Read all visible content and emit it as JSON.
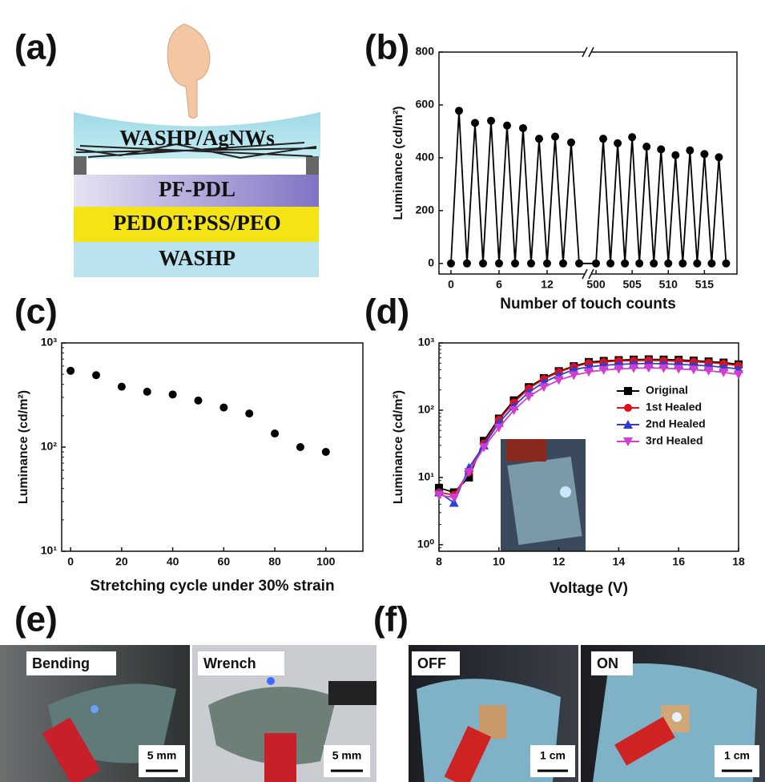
{
  "panel_labels": [
    "(a)",
    "(b)",
    "(c)",
    "(d)",
    "(e)",
    "(f)"
  ],
  "diagram": {
    "layers": [
      "WASHP/AgNWs",
      "PF-PDL",
      "PEDOT:PSS/PEO",
      "WASHP"
    ]
  },
  "photos": [
    {
      "caption": "Bending",
      "scale_bar": "5 mm"
    },
    {
      "caption": "Wrench",
      "scale_bar": "5 mm"
    },
    {
      "caption": "OFF",
      "scale_bar": "1 cm"
    },
    {
      "caption": "ON",
      "scale_bar": "1 cm"
    }
  ],
  "chart_data": [
    {
      "type": "line",
      "x_label": "Number of touch counts",
      "y_label": "Luminance (cd/m²)",
      "x": [
        0,
        1,
        2,
        3,
        4,
        5,
        6,
        7,
        8,
        9,
        10,
        11,
        12,
        13,
        14,
        15,
        16,
        500,
        501,
        502,
        503,
        504,
        505,
        506,
        507,
        508,
        509,
        510,
        511,
        512,
        513,
        514,
        515,
        516,
        517,
        518
      ],
      "series": [
        {
          "color": "#000000",
          "marker": "circle",
          "values": [
            0,
            578,
            0,
            532,
            0,
            540,
            0,
            522,
            0,
            512,
            0,
            472,
            0,
            480,
            0,
            458,
            0,
            0,
            472,
            0,
            455,
            0,
            478,
            0,
            442,
            0,
            432,
            0,
            410,
            0,
            428,
            0,
            414,
            0,
            402,
            0
          ]
        }
      ],
      "xlim": [
        -1.5,
        519.5
      ],
      "xticks": [
        0,
        6,
        12,
        500,
        505,
        510,
        515
      ],
      "ylim": [
        -40,
        800
      ],
      "yticks": [
        0,
        200,
        400,
        600,
        800
      ]
    },
    {
      "type": "scatter",
      "x_label": "Stretching cycle under 30% strain",
      "y_label": "Luminance (cd/m²)",
      "x": [
        0,
        10,
        20,
        30,
        40,
        50,
        60,
        70,
        80,
        90,
        100
      ],
      "series": [
        {
          "color": "#000000",
          "marker": "circle",
          "values": [
            540,
            490,
            380,
            340,
            320,
            280,
            240,
            210,
            135,
            100,
            90
          ]
        }
      ],
      "xlim": [
        -3.5,
        114.5
      ],
      "xticks": [
        0,
        20,
        40,
        60,
        80,
        100
      ],
      "y_scale": "log",
      "ylim": [
        10,
        1000
      ],
      "yticks": [
        {
          "value": 10,
          "label": "10¹"
        },
        {
          "value": 100,
          "label": "10²"
        },
        {
          "value": 1000,
          "label": "10³"
        }
      ]
    },
    {
      "type": "line",
      "x_label": "Voltage (V)",
      "y_label": "Luminance (cd/m²)",
      "x": [
        8,
        8.5,
        9,
        9.5,
        10,
        10.5,
        11,
        11.5,
        12,
        12.5,
        13,
        13.5,
        14,
        14.5,
        15,
        15.5,
        16,
        16.5,
        17,
        17.5,
        18
      ],
      "series": [
        {
          "name": "Original",
          "color": "#000000",
          "marker": "square",
          "values": [
            7,
            6,
            10,
            35,
            75,
            140,
            220,
            300,
            380,
            450,
            520,
            540,
            555,
            565,
            570,
            565,
            560,
            545,
            530,
            510,
            480
          ]
        },
        {
          "name": "1st Healed",
          "color": "#e0101a",
          "marker": "circle",
          "values": [
            6,
            5.5,
            12,
            32,
            72,
            130,
            210,
            290,
            370,
            440,
            500,
            520,
            540,
            545,
            550,
            545,
            535,
            525,
            510,
            490,
            460
          ]
        },
        {
          "name": "2nd Healed",
          "color": "#2a3fd8",
          "marker": "triangle",
          "values": [
            6,
            4.2,
            14,
            30,
            65,
            115,
            185,
            260,
            330,
            400,
            440,
            465,
            480,
            490,
            495,
            490,
            480,
            470,
            455,
            435,
            410
          ]
        },
        {
          "name": "3rd Healed",
          "color": "#d23cd0",
          "marker": "triangle-down",
          "values": [
            5.5,
            5,
            12,
            28,
            55,
            100,
            160,
            220,
            280,
            330,
            370,
            395,
            410,
            420,
            425,
            420,
            410,
            400,
            385,
            365,
            340
          ]
        }
      ],
      "xlim": [
        8,
        18
      ],
      "xticks": [
        8,
        10,
        12,
        14,
        16,
        18
      ],
      "y_scale": "log",
      "ylim": [
        0.8,
        1000
      ],
      "yticks": [
        {
          "value": 1,
          "label": "10⁰"
        },
        {
          "value": 10,
          "label": "10¹"
        },
        {
          "value": 100,
          "label": "10²"
        },
        {
          "value": 1000,
          "label": "10³"
        }
      ]
    }
  ]
}
